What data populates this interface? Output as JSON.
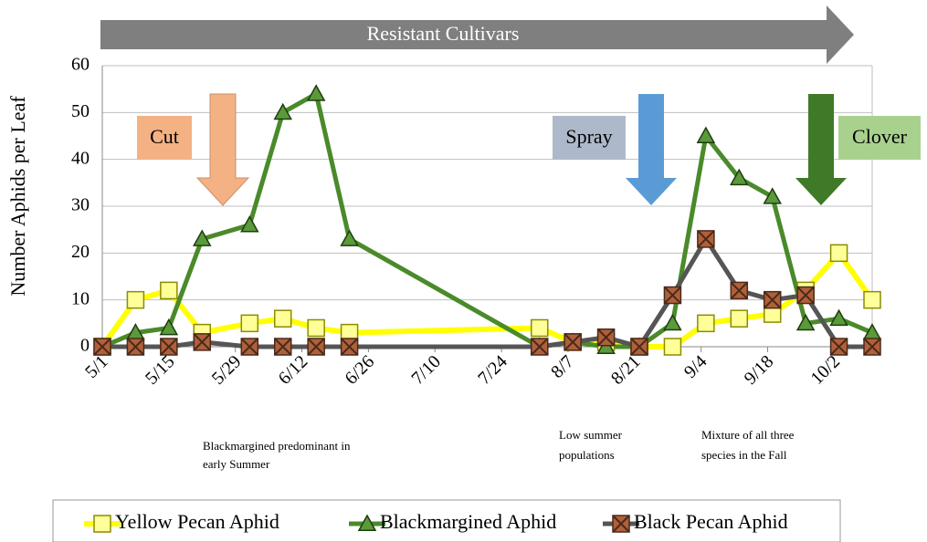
{
  "chart_data": {
    "type": "line",
    "banner": "Resistant Cultivars",
    "ylabel": "Number Aphids per Leaf",
    "annotations": {
      "cut": "Cut",
      "spray": "Spray",
      "clover": "Clover"
    },
    "notes": [
      "Blackmargined predominant in",
      "early Summer",
      "Low summer",
      "populations",
      "Mixture of all three",
      "species in the Fall"
    ],
    "x": [
      "5/1",
      "5/8",
      "5/15",
      "5/22",
      "6/1",
      "6/8",
      "6/15",
      "6/22",
      "8/1",
      "8/8",
      "8/15",
      "8/22",
      "8/29",
      "9/5",
      "9/12",
      "9/19",
      "9/26",
      "10/3",
      "10/10"
    ],
    "series": [
      {
        "name": "Yellow Pecan Aphid",
        "color": "#ffff00",
        "values": [
          0,
          10,
          12,
          3,
          5,
          6,
          4,
          3,
          4,
          1,
          1,
          0,
          0,
          5,
          6,
          7,
          12,
          20,
          10
        ]
      },
      {
        "name": "Blackmargined Aphid",
        "color": "#4a8a2a",
        "values": [
          0,
          3,
          4,
          23,
          26,
          50,
          54,
          23,
          0,
          1,
          0,
          0,
          5,
          45,
          36,
          32,
          5,
          6,
          3
        ]
      },
      {
        "name": "Black Pecan Aphid",
        "color": "#555555",
        "values": [
          0,
          0,
          0,
          1,
          0,
          0,
          0,
          0,
          0,
          1,
          2,
          0,
          11,
          23,
          12,
          10,
          11,
          0,
          0
        ]
      }
    ],
    "xlim": [
      "5/1",
      "10/10"
    ],
    "xticks": [
      "5/1",
      "5/15",
      "5/29",
      "6/12",
      "6/26",
      "7/10",
      "7/24",
      "8/7",
      "8/21",
      "9/4",
      "9/18",
      "10/2"
    ],
    "ylim": [
      0,
      60
    ],
    "yticks": [
      0,
      10,
      20,
      30,
      40,
      50,
      60
    ],
    "grid": true
  }
}
